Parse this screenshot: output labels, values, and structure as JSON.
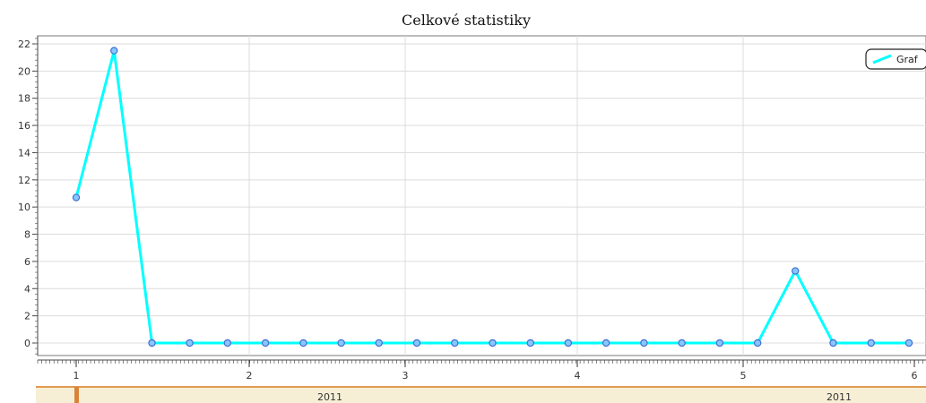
{
  "chart_data": {
    "type": "line",
    "title": "Celkové statistiky",
    "xlabel": "",
    "ylabel": "",
    "xlim": [
      0.932,
      6.116
    ],
    "ylim": [
      -1,
      22.5
    ],
    "x_ticks": [
      "1",
      "2",
      "3",
      "4",
      "5",
      "6"
    ],
    "y_ticks": [
      "0",
      "2",
      "4",
      "6",
      "8",
      "10",
      "12",
      "14",
      "16",
      "18",
      "20",
      "22"
    ],
    "grid": true,
    "legend_position": "top-right",
    "year_labels": [
      "2011",
      "2011"
    ],
    "colors": {
      "line": "#00ffff",
      "marker_fill": "#87c6ff",
      "marker_stroke": "#3f6fd0",
      "year_band": "#f6efd6",
      "year_border": "#e09a50"
    },
    "series": [
      {
        "name": "Graf",
        "x": [
          1.0,
          1.226,
          1.452,
          1.677,
          1.903,
          2.129,
          2.355,
          2.581,
          2.806,
          3.032,
          3.258,
          3.484,
          3.71,
          3.935,
          4.161,
          4.387,
          4.613,
          4.839,
          5.065,
          5.29,
          5.516,
          5.742,
          5.968
        ],
        "y": [
          10.7,
          21.5,
          0,
          0,
          0,
          0,
          0,
          0,
          0,
          0,
          0,
          0,
          0,
          0,
          0,
          0,
          0,
          0,
          0,
          5.3,
          0,
          0,
          0
        ]
      }
    ]
  }
}
